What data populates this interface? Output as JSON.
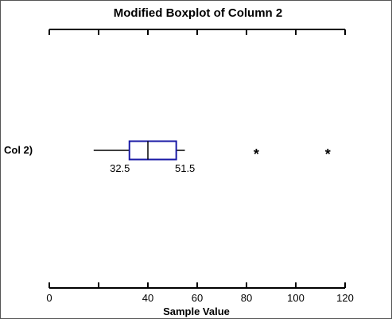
{
  "chart_data": {
    "type": "boxplot",
    "title": "Modified Boxplot of Column 2",
    "xlabel": "Sample Value",
    "category_label": "Col 2)",
    "xlim": [
      0,
      120
    ],
    "ticks": [
      0,
      40,
      60,
      80,
      100,
      120
    ],
    "tick_labels": [
      "0",
      "40",
      "60",
      "80",
      "100",
      "120"
    ],
    "minor_ticks": [
      20
    ],
    "box": {
      "whisker_low": 18,
      "q1": 32.5,
      "median": 40,
      "q3": 51.5,
      "whisker_high": 55,
      "q1_label": "32.5",
      "q3_label": "51.5"
    },
    "outliers": [
      84,
      113
    ],
    "outlier_symbol": "*",
    "colors": {
      "box": "#1a1aa6",
      "whisker": "#000000",
      "axis": "#000000"
    }
  }
}
